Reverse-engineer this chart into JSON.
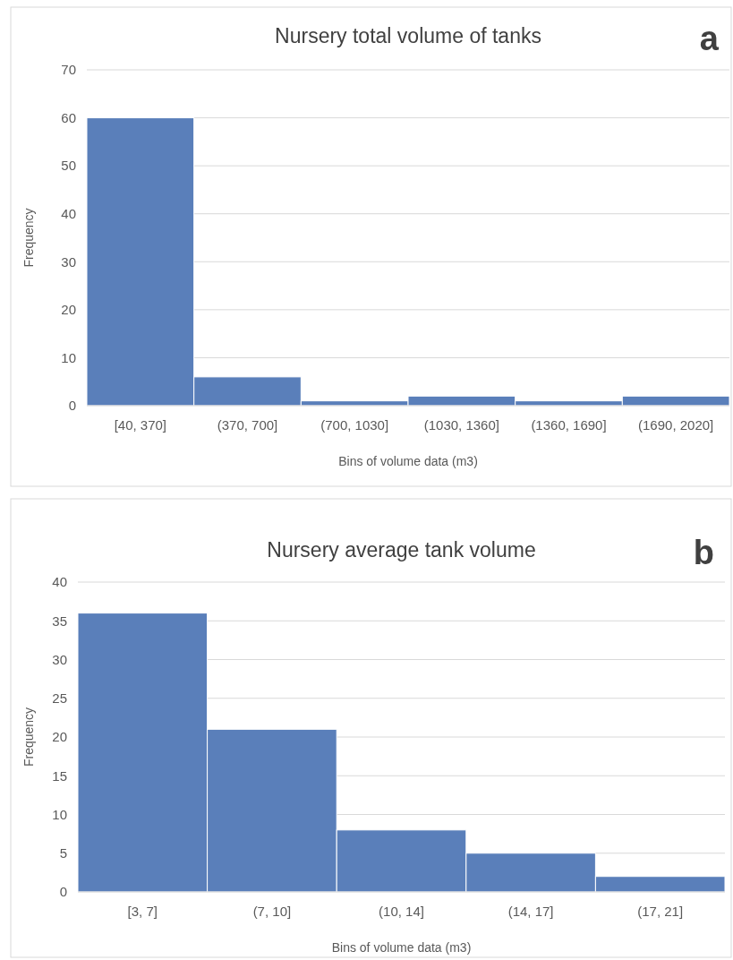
{
  "chart_data": [
    {
      "type": "bar",
      "title": "Nursery total volume of tanks",
      "xlabel": "Bins of volume data (m3)",
      "ylabel": "Frequency",
      "categories": [
        "[40, 370]",
        "(370, 700]",
        "(700, 1030]",
        "(1030, 1360]",
        "(1360, 1690]",
        "(1690, 2020]"
      ],
      "values": [
        60,
        6,
        1,
        2,
        1,
        2
      ],
      "color": "#5a7fba",
      "ylim": [
        0,
        70
      ],
      "yticks": [
        0,
        10,
        20,
        30,
        40,
        50,
        60,
        70
      ],
      "grid": "y",
      "annotations": [
        "a"
      ]
    },
    {
      "type": "bar",
      "title": "Nursery average tank volume",
      "xlabel": "Bins of volume data (m3)",
      "ylabel": "Frequency",
      "categories": [
        "[3, 7]",
        "(7, 10]",
        "(10, 14]",
        "(14, 17]",
        "(17, 21]"
      ],
      "values": [
        36,
        21,
        8,
        5,
        2
      ],
      "color": "#5a7fba",
      "ylim": [
        0,
        40
      ],
      "yticks": [
        0,
        5,
        10,
        15,
        20,
        25,
        30,
        35,
        40
      ],
      "grid": "y",
      "annotations": [
        "b"
      ]
    }
  ]
}
